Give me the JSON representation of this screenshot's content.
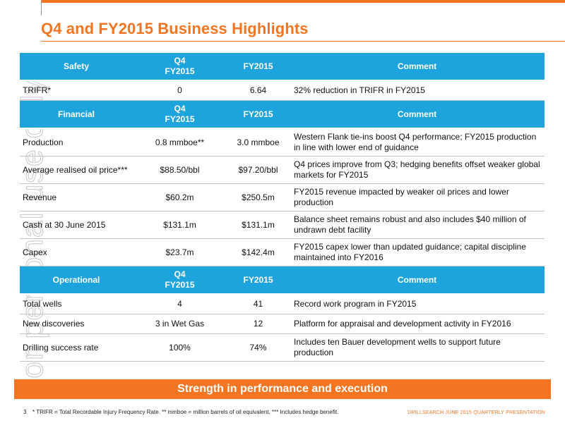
{
  "page": {
    "title": "Q4 and FY2015 Business Highlights",
    "watermark": "For personal use only",
    "banner": "Strength in performance and execution",
    "page_number": "3",
    "footnote": "* TRIFR = Total Recordable Injury Frequency Rate.  ** mmboe = million barrels of oil equivalent.  *** Includes hedge benefit.",
    "brand": "DRILLSEARCH JUNE 2015 QUARTERLY PRESENTATION",
    "accent_color": "#f47521",
    "header_color": "#1ea4dc"
  },
  "sections": [
    {
      "header": {
        "label": "Safety",
        "q4_line1": "Q4",
        "q4_line2": "FY2015",
        "fy": "FY2015",
        "comment": "Comment"
      },
      "rows": [
        {
          "metric": "TRIFR*",
          "q4": "0",
          "fy": "6.64",
          "comment": "32% reduction in TRIFR in FY2015"
        }
      ]
    },
    {
      "header": {
        "label": "Financial",
        "q4_line1": "Q4",
        "q4_line2": "FY2015",
        "fy": "FY2015",
        "comment": "Comment"
      },
      "rows": [
        {
          "metric": "Production",
          "q4": "0.8 mmboe**",
          "fy": "3.0 mmboe",
          "comment": "Western Flank tie-ins boost Q4 performance; FY2015 production in line with lower end of guidance"
        },
        {
          "metric": "Average realised oil price***",
          "q4": "$88.50/bbl",
          "fy": "$97.20/bbl",
          "comment": "Q4 prices improve from Q3; hedging benefits offset weaker global markets for FY2015"
        },
        {
          "metric": "Revenue",
          "q4": "$60.2m",
          "fy": "$250.5m",
          "comment": "FY2015 revenue impacted by weaker oil prices and lower production"
        },
        {
          "metric": "Cash at 30 June 2015",
          "q4": "$131.1m",
          "fy": "$131.1m",
          "comment": "Balance sheet remains robust and also includes $40 million of undrawn debt facility"
        },
        {
          "metric": "Capex",
          "q4": "$23.7m",
          "fy": "$142.4m",
          "comment": "FY2015 capex lower than updated guidance; capital discipline maintained into FY2016"
        }
      ]
    },
    {
      "header": {
        "label": "Operational",
        "q4_line1": "Q4",
        "q4_line2": "FY2015",
        "fy": "FY2015",
        "comment": "Comment"
      },
      "rows": [
        {
          "metric": "Total wells",
          "q4": "4",
          "fy": "41",
          "comment": "Record work program in FY2015"
        },
        {
          "metric": "New discoveries",
          "q4": "3 in Wet Gas",
          "fy": "12",
          "comment": "Platform for appraisal and development activity in FY2016"
        },
        {
          "metric": "Drilling success rate",
          "q4": "100%",
          "fy": "74%",
          "comment": "Includes ten Bauer development wells to support future production"
        }
      ]
    }
  ]
}
